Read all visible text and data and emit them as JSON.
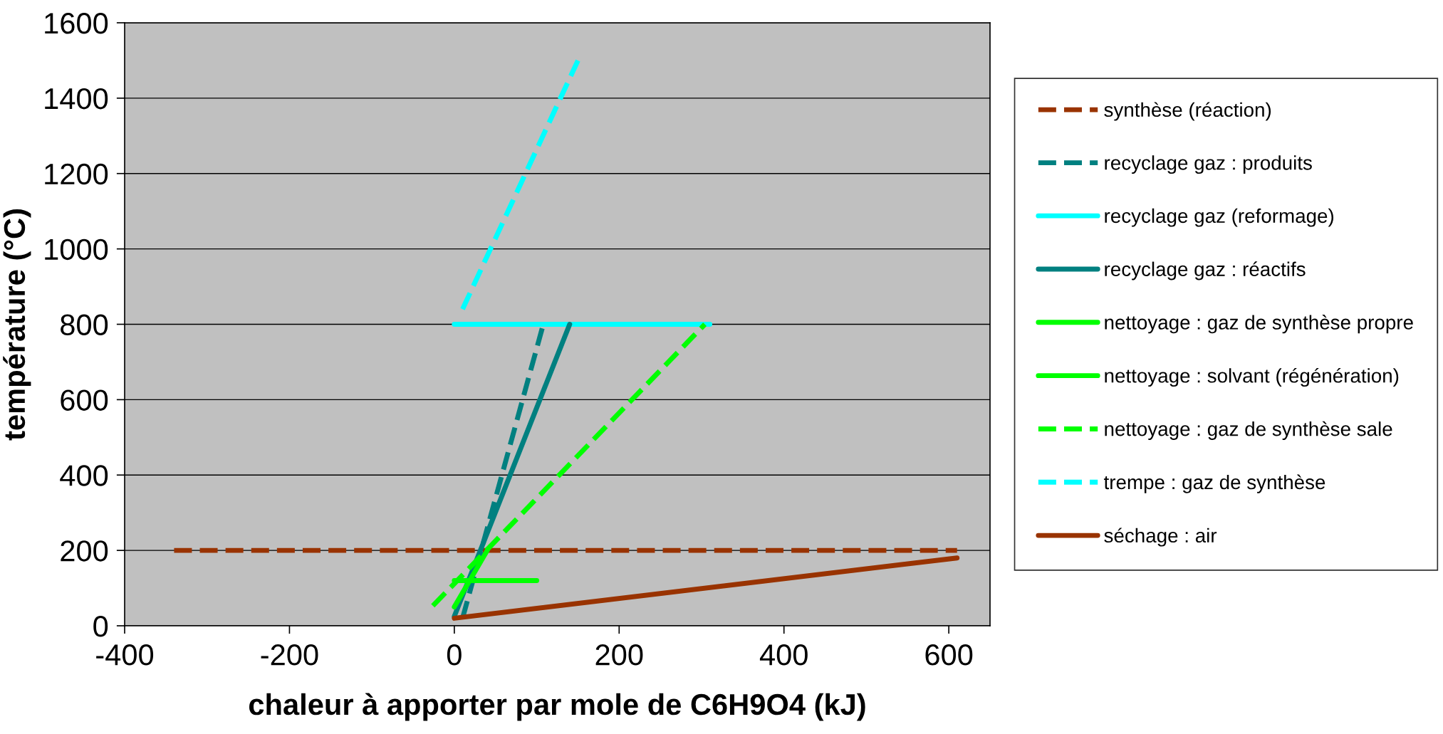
{
  "chart_data": {
    "type": "line",
    "xlabel": "chaleur à apporter par mole de C6H9O4 (kJ)",
    "ylabel": "température (°C)",
    "xlim": [
      -400,
      650
    ],
    "xticks": [
      -400,
      -200,
      0,
      200,
      400,
      600
    ],
    "ylim": [
      0,
      1600
    ],
    "yticks": [
      0,
      200,
      400,
      600,
      800,
      1000,
      1200,
      1400,
      1600
    ],
    "grid": "y",
    "legend": "right",
    "marker": "none",
    "series": [
      {
        "name": "synthèse (réaction)",
        "color": "#993300",
        "line_style": "dashed",
        "x": [
          -340,
          610
        ],
        "values": [
          200,
          200
        ]
      },
      {
        "name": "recyclage gaz : produits",
        "color": "#008080",
        "line_style": "dashed",
        "x": [
          10,
          108
        ],
        "values": [
          20,
          800
        ]
      },
      {
        "name": "recyclage gaz (reformage)",
        "color": "#00ffff",
        "line_style": "solid",
        "x": [
          0,
          310
        ],
        "values": [
          800,
          800
        ]
      },
      {
        "name": "recyclage gaz : réactifs",
        "color": "#008080",
        "line_style": "solid",
        "x": [
          0,
          140
        ],
        "values": [
          25,
          800
        ]
      },
      {
        "name": "nettoyage : gaz de synthèse propre",
        "color": "#00ff00",
        "line_style": "solid",
        "x": [
          0,
          40
        ],
        "values": [
          50,
          200
        ]
      },
      {
        "name": "nettoyage : solvant (régénération)",
        "color": "#00ff00",
        "line_style": "solid",
        "x": [
          0,
          100
        ],
        "values": [
          120,
          120
        ]
      },
      {
        "name": "nettoyage : gaz de synthèse sale",
        "color": "#00ff00",
        "line_style": "dashed",
        "x": [
          -26,
          304
        ],
        "values": [
          53,
          800
        ]
      },
      {
        "name": "trempe : gaz de synthèse",
        "color": "#00ffff",
        "line_style": "dashed",
        "x": [
          10,
          150
        ],
        "values": [
          840,
          1500
        ]
      },
      {
        "name": "séchage : air",
        "color": "#993300",
        "line_style": "solid",
        "x": [
          0,
          610
        ],
        "values": [
          20,
          180
        ]
      }
    ]
  }
}
